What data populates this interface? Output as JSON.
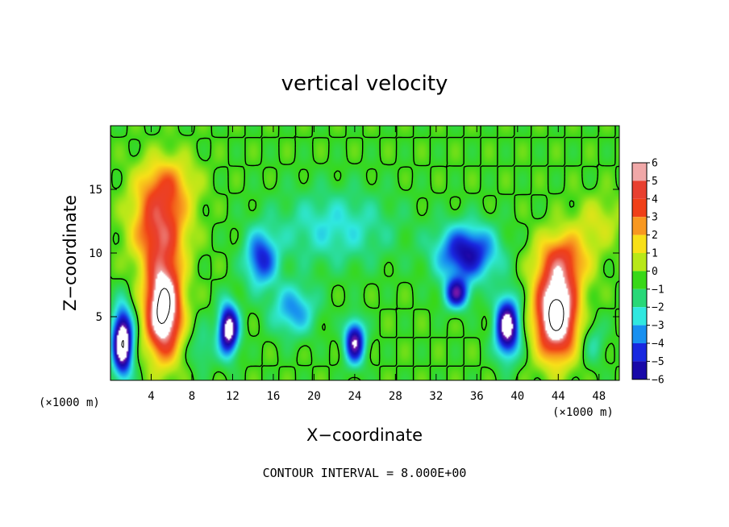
{
  "chart_data": {
    "type": "heatmap",
    "title": "vertical velocity",
    "xlabel": "X−coordinate",
    "ylabel": "Z−coordinate",
    "x_unit_left": "(×1000 m)",
    "x_unit_right": "(×1000 m)",
    "footer": "CONTOUR INTERVAL = 8.000E+00",
    "xlim": [
      0,
      50
    ],
    "ylim": [
      0,
      20
    ],
    "x_ticks": [
      4,
      8,
      12,
      16,
      20,
      24,
      28,
      32,
      36,
      40,
      44,
      48
    ],
    "x_tick_labels": [
      "4",
      "8",
      "12",
      "16",
      "20",
      "24",
      "28",
      "32",
      "36",
      "40",
      "44",
      "48"
    ],
    "y_ticks": [
      5,
      10,
      15
    ],
    "y_tick_labels": [
      "5",
      "10",
      "15"
    ],
    "contour_interval": 8.0,
    "colorbar": {
      "range": [
        -6,
        6
      ],
      "labels": [
        "6",
        "5",
        "4",
        "3",
        "2",
        "1",
        "0",
        "−1",
        "−2",
        "−3",
        "−4",
        "−5",
        "−6"
      ],
      "values": [
        6,
        5,
        4,
        3,
        2,
        1,
        0,
        -1,
        -2,
        -3,
        -4,
        -5,
        -6
      ],
      "colors": [
        "#f0a8a8",
        "#e84030",
        "#f04018",
        "#f89820",
        "#f8e018",
        "#b8e818",
        "#38d818",
        "#28d878",
        "#30e8e0",
        "#1890f0",
        "#1828e0",
        "#1808a8",
        "#7818a8"
      ]
    },
    "features": [
      {
        "kind": "updraft",
        "x": 5.2,
        "z": 5.6,
        "peak": 8
      },
      {
        "kind": "updraft",
        "x": 43.8,
        "z": 5.2,
        "peak": 8
      },
      {
        "kind": "downdraft",
        "x": 1.2,
        "z": 3.0,
        "peak": -8
      },
      {
        "kind": "downdraft",
        "x": 11.6,
        "z": 4.0,
        "peak": -7
      },
      {
        "kind": "downdraft",
        "x": 24.0,
        "z": 3.0,
        "peak": -6
      },
      {
        "kind": "downdraft",
        "x": 39.0,
        "z": 4.2,
        "peak": -7
      },
      {
        "kind": "downdraft",
        "x": 35.0,
        "z": 10.0,
        "peak": -5
      },
      {
        "kind": "downdraft",
        "x": 14.8,
        "z": 9.5,
        "peak": -4
      }
    ]
  }
}
